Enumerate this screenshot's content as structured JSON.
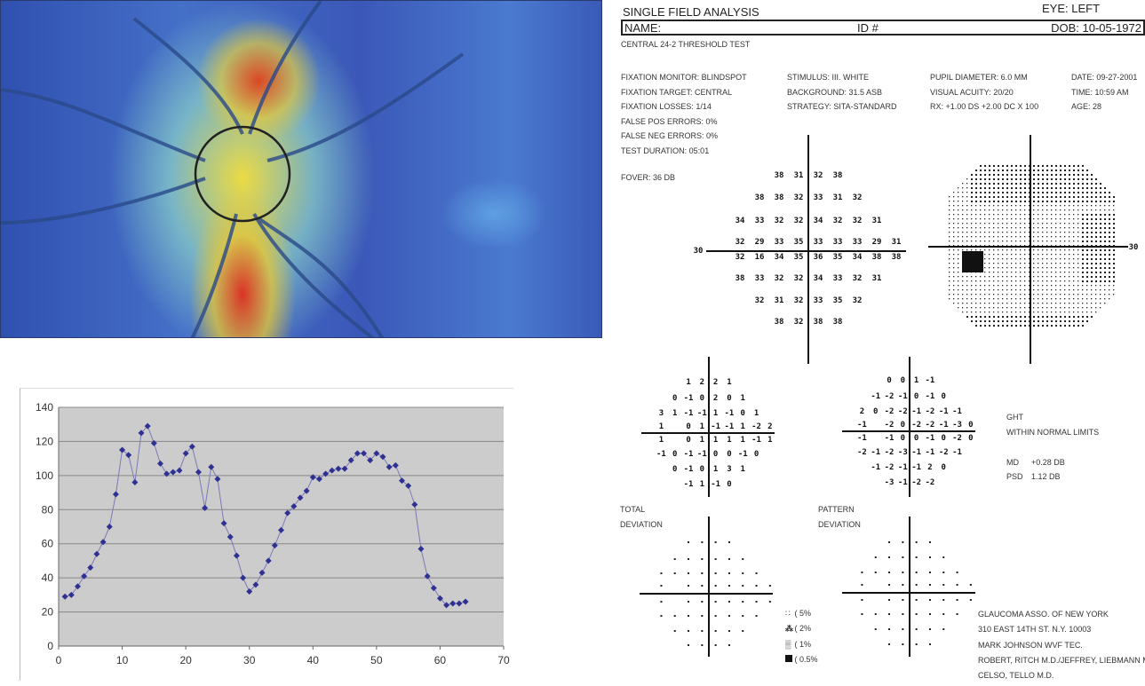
{
  "heatmap": {
    "colors": {
      "low": "#3b58b8",
      "mid": "#f0e040",
      "high": "#e02818",
      "ring": "#222222"
    }
  },
  "chart_data": {
    "type": "line",
    "title": "",
    "xlabel": "",
    "ylabel": "",
    "xlim": [
      0,
      70
    ],
    "ylim": [
      0,
      140
    ],
    "grid": "horizontal",
    "marker": "diamond",
    "color": "#2e3192",
    "background": "#cccccc",
    "xticks": [
      "0",
      "10",
      "20",
      "30",
      "40",
      "50",
      "60",
      "70"
    ],
    "yticks": [
      "0",
      "20",
      "40",
      "60",
      "80",
      "100",
      "120",
      "140"
    ],
    "x": [
      1,
      2,
      3,
      4,
      5,
      6,
      7,
      8,
      9,
      10,
      11,
      12,
      13,
      14,
      15,
      16,
      17,
      18,
      19,
      20,
      21,
      22,
      23,
      24,
      25,
      26,
      27,
      28,
      29,
      30,
      31,
      32,
      33,
      34,
      35,
      36,
      37,
      38,
      39,
      40,
      41,
      42,
      43,
      44,
      45,
      46,
      47,
      48,
      49,
      50,
      51,
      52,
      53,
      54,
      55,
      56,
      57,
      58,
      59,
      60,
      61,
      62,
      63,
      64
    ],
    "y": [
      29,
      30,
      35,
      41,
      46,
      54,
      61,
      70,
      89,
      115,
      112,
      96,
      125,
      129,
      119,
      107,
      101,
      102,
      103,
      113,
      117,
      102,
      81,
      105,
      98,
      72,
      64,
      53,
      40,
      32,
      36,
      43,
      50,
      59,
      68,
      78,
      82,
      87,
      91,
      99,
      98,
      101,
      103,
      104,
      104,
      109,
      113,
      113,
      109,
      113,
      111,
      105,
      106,
      97,
      94,
      83,
      57,
      41,
      34,
      28,
      24,
      25,
      25,
      26
    ]
  },
  "report": {
    "title": "SINGLE FIELD ANALYSIS",
    "eye": "EYE:  LEFT",
    "name": "NAME:",
    "id": "ID #",
    "dob": "DOB: 10-05-1972",
    "test": "CENTRAL 24-2 THRESHOLD TEST",
    "col1": [
      "FIXATION MONITOR: BLINDSPOT",
      "FIXATION TARGET: CENTRAL",
      "FIXATION LOSSES: 1/14",
      "FALSE POS ERRORS:  0%",
      "FALSE NEG ERRORS:  0%",
      "TEST DURATION:  05:01"
    ],
    "col2": [
      "STIMULUS:  III. WHITE",
      "BACKGROUND:  31.5 ASB",
      "STRATEGY: SITA-STANDARD"
    ],
    "col3": [
      "PUPIL DIAMETER: 6.0 MM",
      "VISUAL ACUITY: 20/20",
      "RX: +1.00 DS   +2.00 DC X 100"
    ],
    "col4": [
      "DATE: 09-27-2001",
      "TIME: 10:59 AM",
      "AGE: 28"
    ],
    "fovea": "FOVER:  36 DB",
    "axis_label": "30",
    "threshold": [
      [
        null,
        null,
        "38",
        "31",
        "32",
        "38",
        null,
        null,
        null
      ],
      [
        null,
        "38",
        "38",
        "32",
        "33",
        "31",
        "32",
        null,
        null
      ],
      [
        "34",
        "33",
        "32",
        "32",
        "34",
        "32",
        "32",
        "31",
        null
      ],
      [
        "32",
        "29",
        "33",
        "35",
        "33",
        "33",
        "33",
        "29",
        "31"
      ],
      [
        "32",
        "16",
        "34",
        "35",
        "36",
        "35",
        "34",
        "38",
        "38"
      ],
      [
        "38",
        "33",
        "32",
        "32",
        "34",
        "33",
        "32",
        "31",
        null
      ],
      [
        null,
        "32",
        "31",
        "32",
        "33",
        "35",
        "32",
        null,
        null
      ],
      [
        null,
        null,
        "38",
        "32",
        "38",
        "38",
        null,
        null,
        null
      ]
    ],
    "total_deviation": [
      [
        null,
        null,
        "1",
        "2",
        "2",
        "1",
        null,
        null,
        null
      ],
      [
        null,
        "0",
        "-1",
        "0",
        "2",
        "0",
        "1",
        null,
        null
      ],
      [
        "3",
        "1",
        "-1",
        "-1",
        "1",
        "-1",
        "0",
        "1",
        null
      ],
      [
        "1",
        null,
        "0",
        "1",
        "-1",
        "-1",
        "1",
        "-2",
        "2"
      ],
      [
        "1",
        null,
        "0",
        "1",
        "1",
        "1",
        "1",
        "-1",
        "1"
      ],
      [
        "-1",
        "0",
        "-1",
        "-1",
        "0",
        "0",
        "-1",
        "0",
        null
      ],
      [
        null,
        "0",
        "-1",
        "0",
        "1",
        "3",
        "1",
        null,
        null
      ],
      [
        null,
        null,
        "-1",
        "1",
        "-1",
        "0",
        null,
        null,
        null
      ]
    ],
    "pattern_deviation": [
      [
        null,
        null,
        "0",
        "0",
        "1",
        "-1",
        null,
        null,
        null
      ],
      [
        null,
        "-1",
        "-2",
        "-1",
        "0",
        "-1",
        "0",
        null,
        null
      ],
      [
        "2",
        "0",
        "-2",
        "-2",
        "-1",
        "-2",
        "-1",
        "-1",
        null
      ],
      [
        "-1",
        null,
        "-2",
        "0",
        "-2",
        "-2",
        "-1",
        "-3",
        "0"
      ],
      [
        "-1",
        null,
        "-1",
        "0",
        "0",
        "-1",
        "0",
        "-2",
        "0"
      ],
      [
        "-2",
        "-1",
        "-2",
        "-3",
        "-1",
        "-1",
        "-2",
        "-1",
        null
      ],
      [
        null,
        "-1",
        "-2",
        "-1",
        "-1",
        "2",
        "0",
        null,
        null
      ],
      [
        null,
        null,
        "-3",
        "-1",
        "-2",
        "-2",
        null,
        null,
        null
      ]
    ],
    "ght_label": "GHT",
    "ght_value": "WITHIN NORMAL LIMITS",
    "md_label": "MD",
    "md_value": "+0.28  DB",
    "psd_label": "PSD",
    "psd_value": "1.12  DB",
    "total_label": [
      "TOTAL",
      "DEVIATION"
    ],
    "pattern_label": [
      "PATTERN",
      "DEVIATION"
    ],
    "legend": [
      {
        "label": "5%",
        "icon": "dots-light"
      },
      {
        "label": "2%",
        "icon": "dots-medium"
      },
      {
        "label": "1%",
        "icon": "dots-dense"
      },
      {
        "label": "0.5%",
        "icon": "solid-square"
      }
    ],
    "footer": [
      "GLAUCOMA ASSO. OF NEW YORK",
      "310 EAST 14TH ST. N.Y. 10003",
      "MARK JOHNSON WVF TEC.",
      "ROBERT, RITCH M.D./JEFFREY, LIEBMANN M.D.",
      "CELSO, TELLO M.D."
    ]
  }
}
